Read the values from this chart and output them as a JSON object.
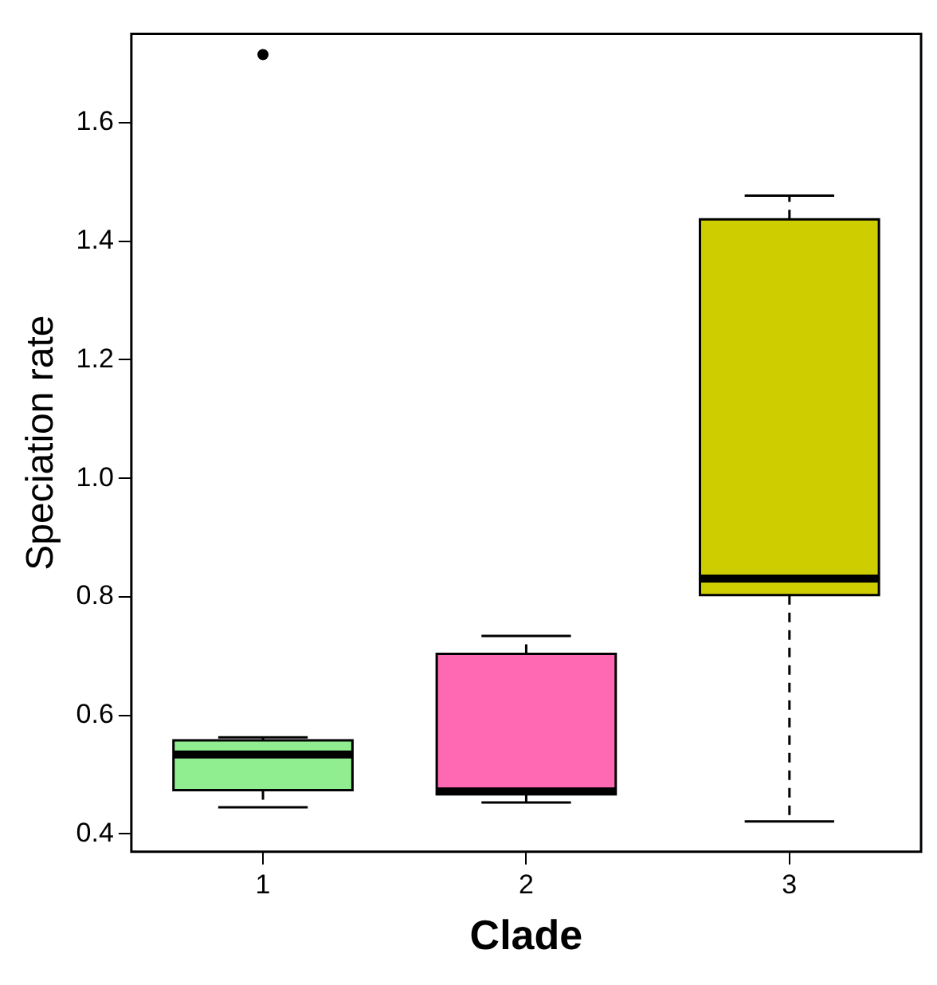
{
  "chart_data": {
    "type": "box",
    "xlabel": "Clade",
    "ylabel": "Speciation rate",
    "categories": [
      "1",
      "2",
      "3"
    ],
    "colors": [
      "#90ee90",
      "#ff69b4",
      "#cdcd00"
    ],
    "boxes": [
      {
        "low": 0.445,
        "q1": 0.474,
        "median": 0.534,
        "q3": 0.558,
        "high": 0.563,
        "outliers": [
          1.715
        ]
      },
      {
        "low": 0.453,
        "q1": 0.467,
        "median": 0.472,
        "q3": 0.704,
        "high": 0.734
      },
      {
        "low": 0.421,
        "q1": 0.803,
        "median": 0.831,
        "q3": 1.437,
        "high": 1.477
      }
    ],
    "ylim": [
      0.37,
      1.75
    ],
    "yticks": [
      {
        "value": 0.4,
        "label": "0.4"
      },
      {
        "value": 0.6,
        "label": "0.6"
      },
      {
        "value": 0.8,
        "label": "0.8"
      },
      {
        "value": 1,
        "label": "1.0"
      },
      {
        "value": 1.2,
        "label": "1.2"
      },
      {
        "value": 1.4,
        "label": "1.4"
      },
      {
        "value": 1.6,
        "label": "1.6"
      }
    ],
    "grid": false,
    "legend": false
  }
}
